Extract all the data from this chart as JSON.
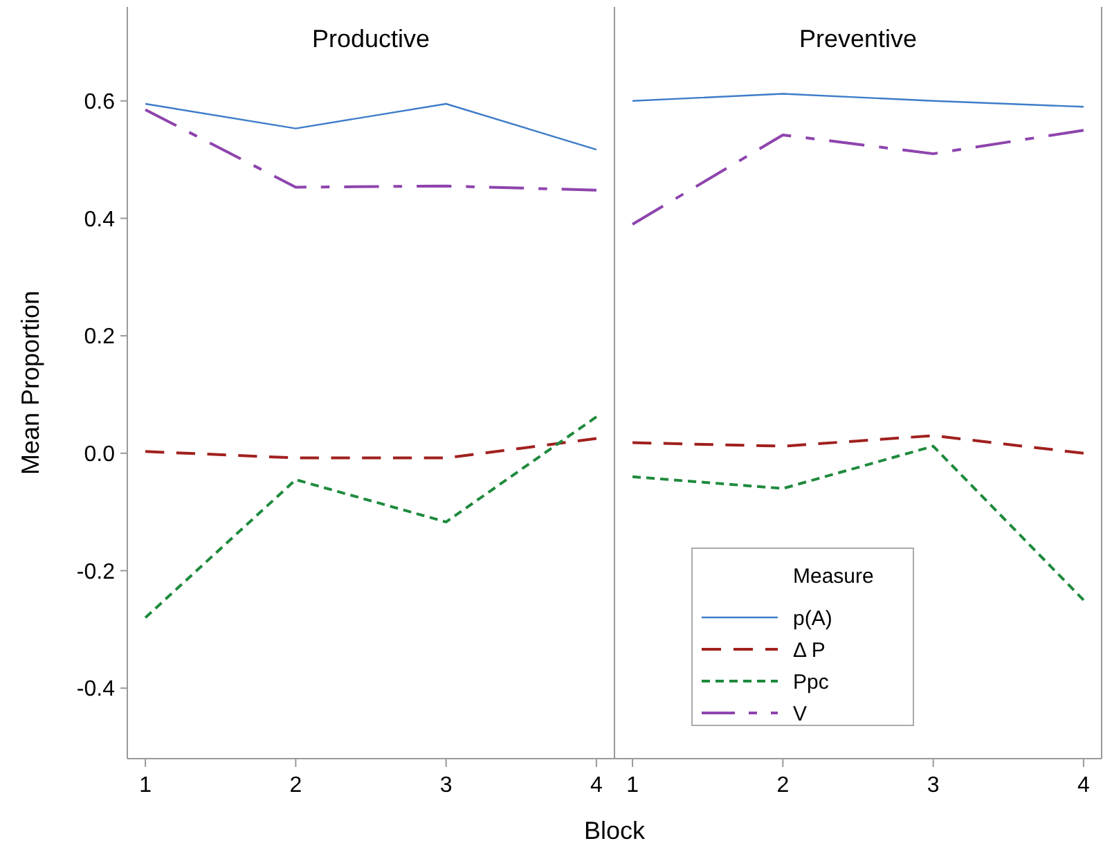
{
  "chart_data": [
    {
      "type": "line",
      "title": "Productive",
      "xlabel": "Block",
      "ylabel": "Mean Proportion",
      "categories": [
        "1",
        "2",
        "3",
        "4"
      ],
      "ylim": [
        -0.52,
        0.76
      ],
      "yticks": [
        {
          "value": -0.4,
          "label": "-0.4"
        },
        {
          "value": -0.2,
          "label": "-0.2"
        },
        {
          "value": 0,
          "label": "0.0"
        },
        {
          "value": 0.2,
          "label": "0.2"
        },
        {
          "value": 0.4,
          "label": "0.4"
        },
        {
          "value": 0.6,
          "label": "0.6"
        }
      ],
      "grid": false,
      "legend": false,
      "series": [
        {
          "color": "#3d7cc9",
          "line_style": "solid",
          "values": [
            0.595,
            0.553,
            0.595,
            0.517
          ]
        },
        {
          "color": "#a0201e",
          "line_style": "dashed",
          "values": [
            0.003,
            -0.008,
            -0.008,
            0.025
          ]
        },
        {
          "color": "#1e8a3c",
          "line_style": "dotted",
          "values": [
            -0.28,
            -0.045,
            -0.117,
            0.062
          ]
        },
        {
          "color": "#8e44ad",
          "line_style": "dashdot",
          "values": [
            0.585,
            0.453,
            0.455,
            0.448
          ]
        }
      ]
    },
    {
      "type": "line",
      "title": "Preventive",
      "categories": [
        "1",
        "2",
        "3",
        "4"
      ],
      "ylim": [
        -0.52,
        0.76
      ],
      "tick_labels": "x",
      "grid": false,
      "legend": "bottom left",
      "legend_title": "Measure",
      "series": [
        {
          "name": "p(A)",
          "color": "#3d7cc9",
          "line_style": "solid",
          "values": [
            0.6,
            0.612,
            0.6,
            0.59
          ]
        },
        {
          "name": "Δ P",
          "color": "#a0201e",
          "line_style": "dashed",
          "values": [
            0.018,
            0.012,
            0.03,
            0.0
          ]
        },
        {
          "name": "Ppc",
          "color": "#1e8a3c",
          "line_style": "dotted",
          "values": [
            -0.04,
            -0.06,
            0.012,
            -0.25
          ]
        },
        {
          "name": "V",
          "color": "#8e44ad",
          "line_style": "dashdot",
          "values": [
            0.39,
            0.542,
            0.51,
            0.55
          ]
        }
      ]
    }
  ]
}
